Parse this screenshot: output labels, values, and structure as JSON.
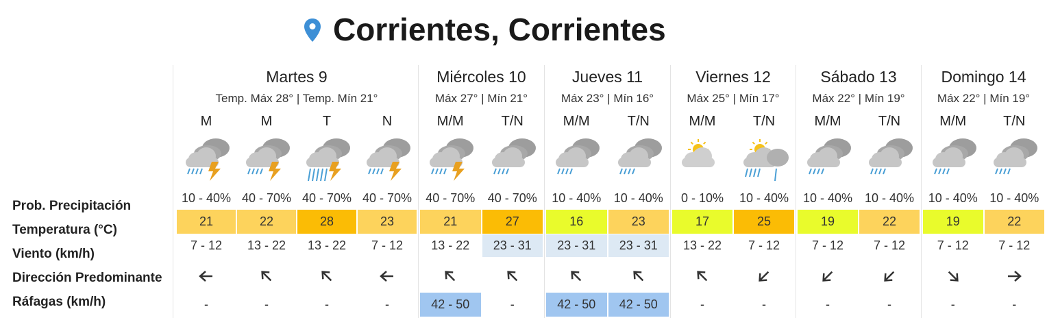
{
  "header": {
    "title": "Corrientes, Corrientes"
  },
  "row_labels": [
    "Prob. Precipitación",
    "Temperatura (°C)",
    "Viento (km/h)",
    "Dirección Predominante",
    "Ráfagas (km/h)"
  ],
  "days": [
    {
      "name": "Martes 9",
      "temps": "Temp. Máx 28° | Temp. Mín 21°",
      "periods": [
        {
          "label": "M",
          "precip": "10 - 40%",
          "temp": 21,
          "temp_color": "#fdd35c",
          "wind": "7 - 12",
          "gusts": "-"
        },
        {
          "label": "M",
          "precip": "40 - 70%",
          "temp": 22,
          "temp_color": "#fdd35c",
          "wind": "13 - 22",
          "gusts": "-"
        },
        {
          "label": "T",
          "precip": "40 - 70%",
          "temp": 28,
          "temp_color": "#fbbc05",
          "wind": "13 - 22",
          "gusts": "-"
        },
        {
          "label": "N",
          "precip": "40 - 70%",
          "temp": 23,
          "temp_color": "#fdd35c",
          "wind": "7 - 12",
          "gusts": "-"
        }
      ]
    },
    {
      "name": "Miércoles 10",
      "temps": "Máx 27° | Mín 21°",
      "periods": [
        {
          "label": "M/M",
          "precip": "40 - 70%",
          "temp": 21,
          "temp_color": "#fdd35c",
          "wind": "13 - 22",
          "gusts": "42 - 50",
          "gust_color": "#a0c6f0"
        },
        {
          "label": "T/N",
          "precip": "40 - 70%",
          "temp": 27,
          "temp_color": "#fbbc05",
          "wind": "23 - 31",
          "wind_color": "#dde9f4",
          "gusts": "-"
        }
      ]
    },
    {
      "name": "Jueves 11",
      "temps": "Máx 23° | Mín 16°",
      "periods": [
        {
          "label": "M/M",
          "precip": "10 - 40%",
          "temp": 16,
          "temp_color": "#e9fb2c",
          "wind": "23 - 31",
          "wind_color": "#dde9f4",
          "gusts": "42 - 50",
          "gust_color": "#a0c6f0"
        },
        {
          "label": "T/N",
          "precip": "10 - 40%",
          "temp": 23,
          "temp_color": "#fdd35c",
          "wind": "23 - 31",
          "wind_color": "#dde9f4",
          "gusts": "42 - 50",
          "gust_color": "#a0c6f0"
        }
      ]
    },
    {
      "name": "Viernes 12",
      "temps": "Máx 25° | Mín 17°",
      "periods": [
        {
          "label": "M/M",
          "precip": "0 - 10%",
          "temp": 17,
          "temp_color": "#e9fb2c",
          "wind": "13 - 22",
          "gusts": "-"
        },
        {
          "label": "T/N",
          "precip": "10 - 40%",
          "temp": 25,
          "temp_color": "#fbbc05",
          "wind": "7 - 12",
          "gusts": "-"
        }
      ]
    },
    {
      "name": "Sábado 13",
      "temps": "Máx 22° | Mín 19°",
      "periods": [
        {
          "label": "M/M",
          "precip": "10 - 40%",
          "temp": 19,
          "temp_color": "#e9fb2c",
          "wind": "7 - 12",
          "gusts": "-"
        },
        {
          "label": "T/N",
          "precip": "10 - 40%",
          "temp": 22,
          "temp_color": "#fdd35c",
          "wind": "7 - 12",
          "gusts": "-"
        }
      ]
    },
    {
      "name": "Domingo 14",
      "temps": "Máx 22° | Mín 19°",
      "periods": [
        {
          "label": "M/M",
          "precip": "10 - 40%",
          "temp": 19,
          "temp_color": "#e9fb2c",
          "wind": "7 - 12",
          "gusts": "-"
        },
        {
          "label": "T/N",
          "precip": "10 - 40%",
          "temp": 22,
          "temp_color": "#fdd35c",
          "wind": "7 - 12",
          "gusts": "-"
        }
      ]
    }
  ]
}
